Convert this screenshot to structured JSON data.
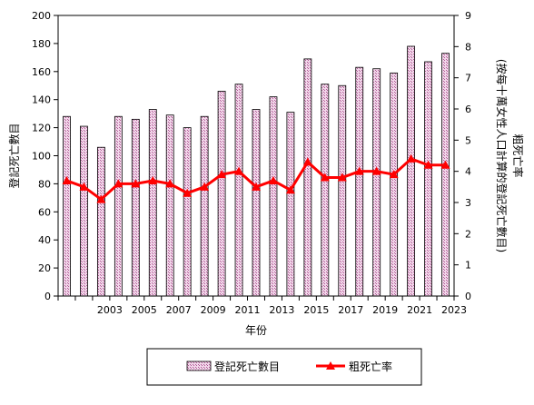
{
  "chart_data": {
    "type": "bar",
    "y_axis_left": {
      "label": "登記死亡數目",
      "range": [
        0,
        200
      ],
      "ticks": [
        0,
        20,
        40,
        60,
        80,
        100,
        120,
        140,
        160,
        180,
        200
      ]
    },
    "y_axis_right": {
      "label": "粗死亡率 (按每十萬女性人口計算的登記死亡數目)",
      "range": [
        0,
        9
      ],
      "ticks": [
        0,
        1,
        2,
        3,
        4,
        5,
        6,
        7,
        8,
        9
      ]
    },
    "x_axis": {
      "label": "年份",
      "tick_labels": [
        "2003",
        "2005",
        "2007",
        "2009",
        "2011",
        "2013",
        "2015",
        "2017",
        "2019",
        "2021",
        "2023"
      ]
    },
    "years": [
      2001,
      2002,
      2003,
      2004,
      2005,
      2006,
      2007,
      2008,
      2009,
      2010,
      2011,
      2012,
      2013,
      2014,
      2015,
      2016,
      2017,
      2018,
      2019,
      2020,
      2021,
      2022,
      2023
    ],
    "series": [
      {
        "name": "登記死亡數目",
        "type": "bar",
        "axis": "left",
        "color": "#d9a0c8",
        "values": [
          128,
          121,
          106,
          128,
          126,
          133,
          129,
          120,
          128,
          146,
          151,
          133,
          142,
          131,
          169,
          151,
          150,
          163,
          162,
          159,
          178,
          167,
          173
        ]
      },
      {
        "name": "粗死亡率",
        "type": "line",
        "axis": "right",
        "color": "#ff0000",
        "values": [
          3.7,
          3.5,
          3.1,
          3.6,
          3.6,
          3.7,
          3.6,
          3.3,
          3.5,
          3.9,
          4.0,
          3.5,
          3.7,
          3.4,
          4.3,
          3.8,
          3.8,
          4.0,
          4.0,
          3.9,
          4.4,
          4.2,
          4.2
        ]
      }
    ],
    "legend_position": "bottom",
    "grid": false
  }
}
